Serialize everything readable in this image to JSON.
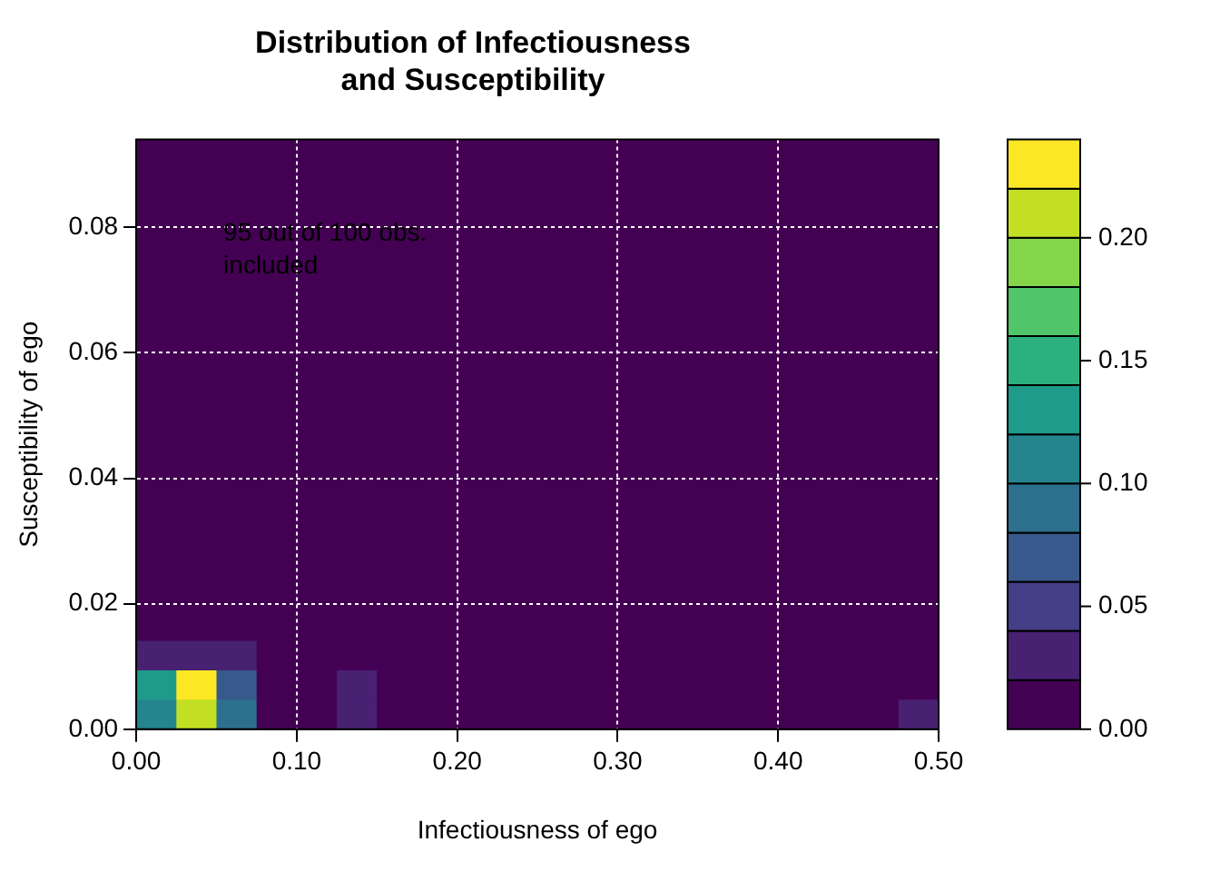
{
  "chart_data": {
    "type": "heatmap",
    "title": "Distribution of Infectiousness and Susceptibility",
    "xlabel": "Infectiousness of ego",
    "ylabel": "Susceptibility of ego",
    "annotations": [
      "95 out of 100 obs.\nincluded"
    ],
    "x": [
      0.0125,
      0.0375,
      0.0625,
      0.0875,
      0.1125,
      0.1375,
      0.1625,
      0.1875,
      0.2125,
      0.2375,
      0.2625,
      0.2875,
      0.3125,
      0.3375,
      0.3625,
      0.3875,
      0.4125,
      0.4375,
      0.4625,
      0.4875
    ],
    "xlim": [
      0,
      0.5
    ],
    "xticks": [
      {
        "value": 0,
        "label": "0.00"
      },
      {
        "value": 0.1,
        "label": "0.10"
      },
      {
        "value": 0.2,
        "label": "0.20"
      },
      {
        "value": 0.3,
        "label": "0.30"
      },
      {
        "value": 0.4,
        "label": "0.40"
      },
      {
        "value": 0.5,
        "label": "0.50"
      }
    ],
    "ylim": [
      0,
      0.094
    ],
    "yticks": [
      {
        "value": 0,
        "label": "0.00"
      },
      {
        "value": 0.02,
        "label": "0.02"
      },
      {
        "value": 0.04,
        "label": "0.04"
      },
      {
        "value": 0.06,
        "label": "0.06"
      },
      {
        "value": 0.08,
        "label": "0.08"
      }
    ],
    "clim": [
      0,
      0.24
    ],
    "cticks": [
      {
        "value": 0,
        "label": "0.00"
      },
      {
        "value": 0.05,
        "label": "0.05"
      },
      {
        "value": 0.1,
        "label": "0.10"
      },
      {
        "value": 0.15,
        "label": "0.15"
      },
      {
        "value": 0.2,
        "label": "0.20"
      }
    ],
    "colors": [
      "#440154",
      "#482173",
      "#433e85",
      "#38598c",
      "#2d708e",
      "#25858e",
      "#1e9b8a",
      "#2bb07f",
      "#51c56a",
      "#85d54a",
      "#c2df23",
      "#fde725"
    ],
    "grid": true,
    "cells": [
      [
        0,
        0,
        0,
        0,
        0,
        0,
        0,
        0,
        0,
        0,
        0,
        0,
        0,
        0,
        0,
        0,
        0,
        0,
        0,
        0
      ],
      [
        0,
        0,
        0,
        0,
        0,
        0,
        0,
        0,
        0,
        0,
        0,
        0,
        0,
        0,
        0,
        0,
        0,
        0,
        0,
        0
      ],
      [
        0,
        0,
        0,
        0,
        0,
        0,
        0,
        0,
        0,
        0,
        0,
        0,
        0,
        0,
        0,
        0,
        0,
        0,
        0,
        0
      ],
      [
        0,
        0,
        0,
        0,
        0,
        0,
        0,
        0,
        0,
        0,
        0,
        0,
        0,
        0,
        0,
        0,
        0,
        0,
        0,
        0
      ],
      [
        0,
        0,
        0,
        0,
        0,
        0,
        0,
        0,
        0,
        0,
        0,
        0,
        0,
        0,
        0,
        0,
        0,
        0,
        0,
        0
      ],
      [
        0,
        0,
        0,
        0,
        0,
        0,
        0,
        0,
        0,
        0,
        0,
        0,
        0,
        0,
        0,
        0,
        0,
        0,
        0,
        0
      ],
      [
        0,
        0,
        0,
        0,
        0,
        0,
        0,
        0,
        0,
        0,
        0,
        0,
        0,
        0,
        0,
        0,
        0,
        0,
        0,
        0
      ],
      [
        0,
        0,
        0,
        0,
        0,
        0,
        0,
        0,
        0,
        0,
        0,
        0,
        0,
        0,
        0,
        0,
        0,
        0,
        0,
        0
      ],
      [
        0,
        0,
        0,
        0,
        0,
        0,
        0,
        0,
        0,
        0,
        0,
        0,
        0,
        0,
        0,
        0,
        0,
        0,
        0,
        0
      ],
      [
        0,
        0,
        0,
        0,
        0,
        0,
        0,
        0,
        0,
        0,
        0,
        0,
        0,
        0,
        0,
        0,
        0,
        0,
        0,
        0
      ],
      [
        0,
        0,
        0,
        0,
        0,
        0,
        0,
        0,
        0,
        0,
        0,
        0,
        0,
        0,
        0,
        0,
        0,
        0,
        0,
        0
      ],
      [
        0,
        0,
        0,
        0,
        0,
        0,
        0,
        0,
        0,
        0,
        0,
        0,
        0,
        0,
        0,
        0,
        0,
        0,
        0,
        0
      ],
      [
        0,
        0,
        0,
        0,
        0,
        0,
        0,
        0,
        0,
        0,
        0,
        0,
        0,
        0,
        0,
        0,
        0,
        0,
        0,
        0
      ],
      [
        0,
        0,
        0,
        0,
        0,
        0,
        0,
        0,
        0,
        0,
        0,
        0,
        0,
        0,
        0,
        0,
        0,
        0,
        0,
        0
      ],
      [
        0,
        0,
        0,
        0,
        0,
        0,
        0,
        0,
        0,
        0,
        0,
        0,
        0,
        0,
        0,
        0,
        0,
        0,
        0,
        0
      ],
      [
        0,
        0,
        0,
        0,
        0,
        0,
        0,
        0,
        0,
        0,
        0,
        0,
        0,
        0,
        0,
        0,
        0,
        0,
        0,
        0
      ],
      [
        0,
        0,
        0,
        0,
        0,
        0,
        0,
        0,
        0,
        0,
        0,
        0,
        0,
        0,
        0,
        0,
        0,
        0,
        0,
        0
      ],
      [
        0.03,
        0.03,
        0.02,
        0,
        0,
        0,
        0,
        0,
        0,
        0,
        0,
        0,
        0,
        0,
        0,
        0,
        0,
        0,
        0,
        0
      ],
      [
        0.12,
        0.22,
        0.06,
        0,
        0,
        0.03,
        0,
        0,
        0,
        0,
        0,
        0,
        0,
        0,
        0,
        0,
        0,
        0,
        0,
        0
      ],
      [
        0.1,
        0.2,
        0.08,
        0,
        0,
        0.03,
        0,
        0,
        0,
        0,
        0,
        0,
        0,
        0,
        0,
        0,
        0,
        0,
        0,
        0.03
      ]
    ]
  }
}
